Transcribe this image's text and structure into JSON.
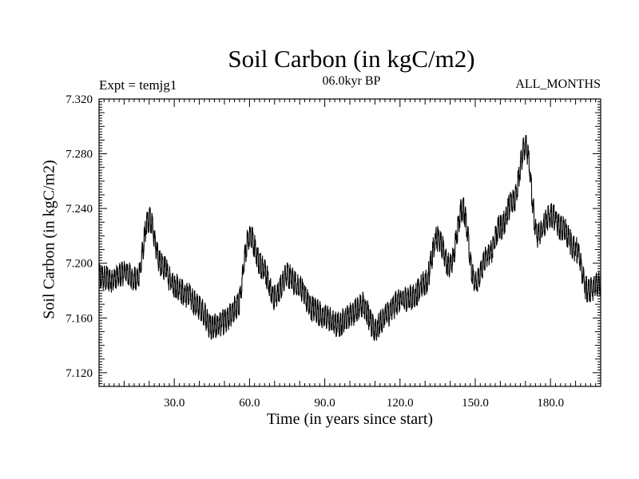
{
  "chart_data": {
    "type": "line",
    "title": "Soil Carbon (in kgC/m2)",
    "experiment_label": "Expt = temjg1",
    "period_label": "06.0kyr BP",
    "season_label": "ALL_MONTHS",
    "xlabel": "Time (in years since start)",
    "ylabel": "Soil Carbon (in kgC/m2)",
    "xlim": [
      0,
      200
    ],
    "ylim": [
      7.11,
      7.32
    ],
    "x_ticks": [
      30,
      60,
      90,
      120,
      150,
      180
    ],
    "x_tick_labels": [
      "30.0",
      "60.0",
      "90.0",
      "120.0",
      "150.0",
      "180.0"
    ],
    "y_ticks": [
      7.12,
      7.16,
      7.2,
      7.24,
      7.28,
      7.32
    ],
    "y_tick_labels": [
      "7.120",
      "7.160",
      "7.200",
      "7.240",
      "7.280",
      "7.320"
    ],
    "grid": false,
    "series": [
      {
        "name": "Soil Carbon",
        "x": [
          0,
          5,
          10,
          15,
          20,
          25,
          30,
          35,
          40,
          45,
          50,
          55,
          60,
          65,
          70,
          75,
          80,
          85,
          90,
          95,
          100,
          105,
          110,
          115,
          120,
          125,
          130,
          135,
          140,
          145,
          150,
          155,
          160,
          165,
          170,
          175,
          180,
          185,
          190,
          195,
          200
        ],
        "y": [
          7.19,
          7.188,
          7.193,
          7.188,
          7.232,
          7.198,
          7.184,
          7.177,
          7.168,
          7.153,
          7.157,
          7.168,
          7.22,
          7.198,
          7.175,
          7.191,
          7.182,
          7.167,
          7.161,
          7.155,
          7.162,
          7.17,
          7.152,
          7.163,
          7.173,
          7.175,
          7.186,
          7.218,
          7.198,
          7.24,
          7.185,
          7.205,
          7.226,
          7.245,
          7.285,
          7.22,
          7.235,
          7.225,
          7.21,
          7.18,
          7.185
        ]
      }
    ]
  }
}
